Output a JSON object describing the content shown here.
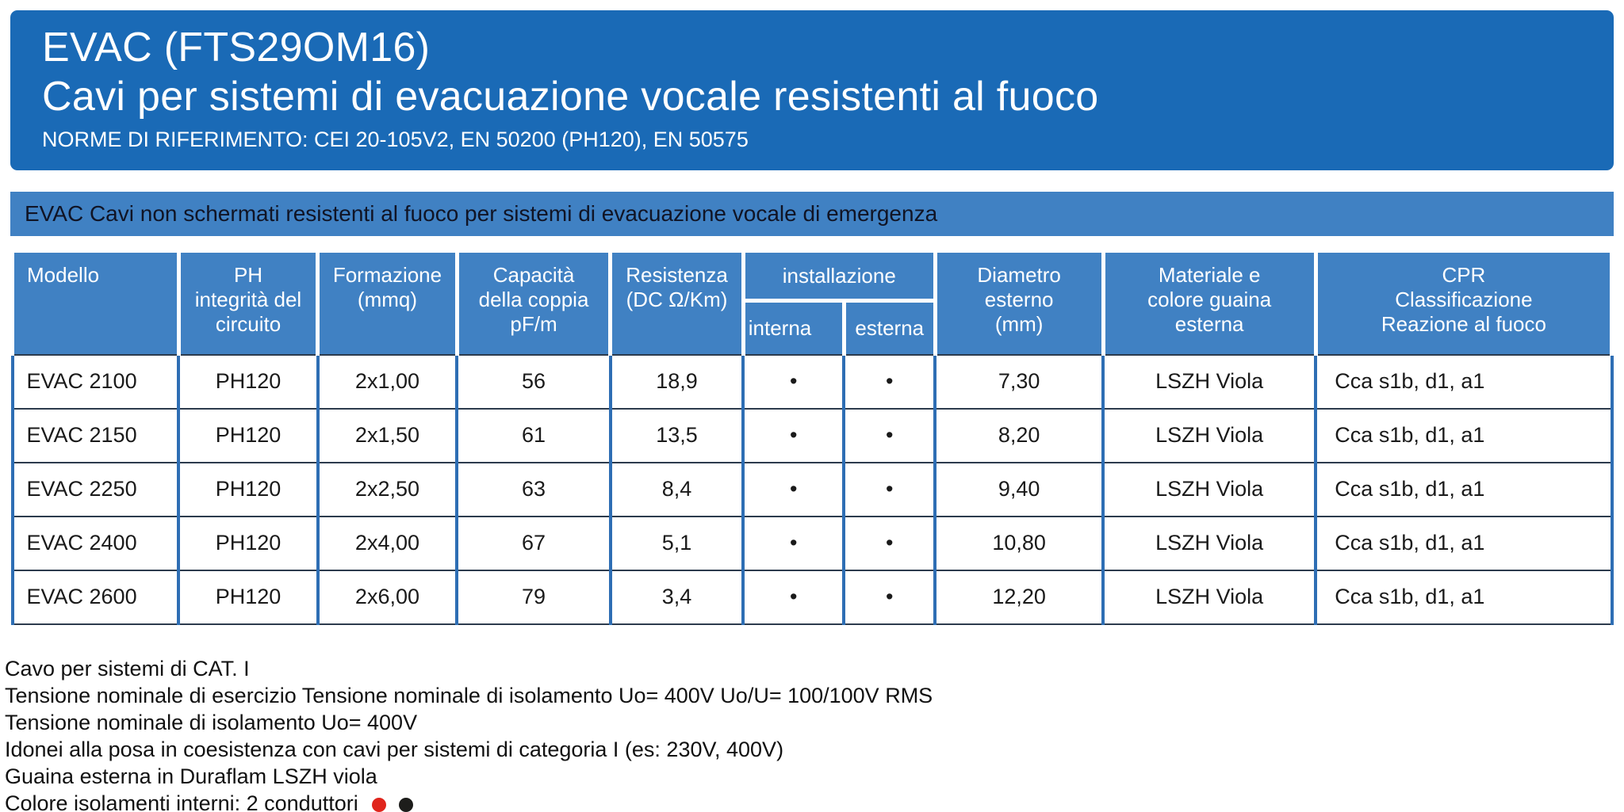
{
  "header": {
    "title_line1": "EVAC (FTS29OM16)",
    "title_line2": "Cavi per sistemi di evacuazione vocale resistenti al fuoco",
    "norms": "NORME DI RIFERIMENTO: CEI 20-105V2, EN 50200 (PH120), EN 50575"
  },
  "banner": {
    "text": "EVAC Cavi non schermati resistenti al fuoco per sistemi di evacuazione vocale di emergenza"
  },
  "table": {
    "headers": {
      "modello": "Modello",
      "ph": "PH\nintegrità del\ncircuito",
      "formazione": "Formazione\n(mmq)",
      "capacita": "Capacità\ndella coppia\npF/m",
      "resistenza": "Resistenza\n(DC Ω/Km)",
      "installazione": "installazione",
      "interna": "interna",
      "esterna": "esterna",
      "diametro": "Diametro\nesterno\n(mm)",
      "materiale": "Materiale e\ncolore guaina\nesterna",
      "cpr": "CPR\nClassificazione\nReazione al fuoco"
    },
    "rows": [
      [
        "EVAC 2100",
        "PH120",
        "2x1,00",
        "56",
        "18,9",
        "•",
        "•",
        "7,30",
        "LSZH Viola",
        "Cca s1b, d1, a1"
      ],
      [
        "EVAC 2150",
        "PH120",
        "2x1,50",
        "61",
        "13,5",
        "•",
        "•",
        "8,20",
        "LSZH Viola",
        "Cca s1b, d1, a1"
      ],
      [
        "EVAC 2250",
        "PH120",
        "2x2,50",
        "63",
        "8,4",
        "•",
        "•",
        "9,40",
        "LSZH Viola",
        "Cca s1b, d1, a1"
      ],
      [
        "EVAC 2400",
        "PH120",
        "2x4,00",
        "67",
        "5,1",
        "•",
        "•",
        "10,80",
        "LSZH Viola",
        "Cca s1b, d1, a1"
      ],
      [
        "EVAC 2600",
        "PH120",
        "2x6,00",
        "79",
        "3,4",
        "•",
        "•",
        "12,20",
        "LSZH Viola",
        "Cca s1b, d1, a1"
      ]
    ]
  },
  "notes": [
    "Cavo per sistemi di CAT. I",
    "Tensione nominale di esercizio Tensione nominale di isolamento Uo= 400V Uo/U= 100/100V RMS",
    "Tensione nominale di isolamento Uo= 400V",
    "Idonei alla posa in coesistenza con cavi per sistemi di categoria I (es: 230V, 400V)",
    "Guaina esterna in Duraflam LSZH viola",
    "Colore isolamenti interni: 2 conduttori"
  ],
  "colors": {
    "header_bg": "#1a6ab6",
    "banner_bg": "#4081c3",
    "table_header_bg": "#4081c3",
    "column_border_blue": "#2e6eb4",
    "row_line": "#2c3b4d",
    "conductor_red": "#e0251c",
    "conductor_black": "#1d1d1b"
  }
}
